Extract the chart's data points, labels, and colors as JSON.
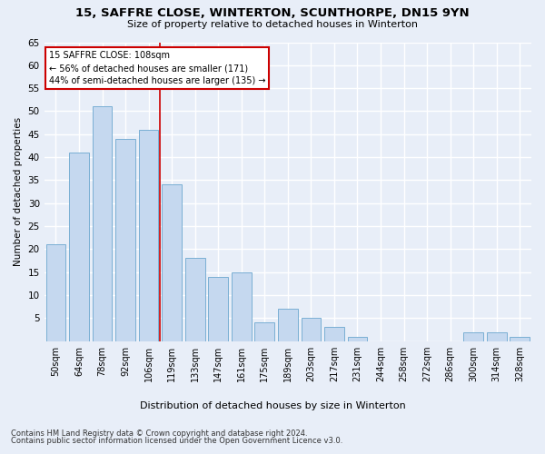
{
  "title": "15, SAFFRE CLOSE, WINTERTON, SCUNTHORPE, DN15 9YN",
  "subtitle": "Size of property relative to detached houses in Winterton",
  "xlabel": "Distribution of detached houses by size in Winterton",
  "ylabel": "Number of detached properties",
  "bar_color": "#c5d8ef",
  "bar_edge_color": "#7aafd4",
  "background_color": "#e8eef8",
  "grid_color": "#ffffff",
  "categories": [
    "50sqm",
    "64sqm",
    "78sqm",
    "92sqm",
    "106sqm",
    "119sqm",
    "133sqm",
    "147sqm",
    "161sqm",
    "175sqm",
    "189sqm",
    "203sqm",
    "217sqm",
    "231sqm",
    "244sqm",
    "258sqm",
    "272sqm",
    "286sqm",
    "300sqm",
    "314sqm",
    "328sqm"
  ],
  "values": [
    21,
    41,
    51,
    44,
    46,
    34,
    18,
    14,
    15,
    4,
    7,
    5,
    3,
    1,
    0,
    0,
    0,
    0,
    2,
    2,
    1
  ],
  "ylim": [
    0,
    65
  ],
  "yticks": [
    0,
    5,
    10,
    15,
    20,
    25,
    30,
    35,
    40,
    45,
    50,
    55,
    60,
    65
  ],
  "vline_x": 4.5,
  "vline_color": "#cc0000",
  "annotation_title": "15 SAFFRE CLOSE: 108sqm",
  "annotation_line1": "← 56% of detached houses are smaller (171)",
  "annotation_line2": "44% of semi-detached houses are larger (135) →",
  "annotation_box_color": "#ffffff",
  "annotation_box_edge": "#cc0000",
  "footnote1": "Contains HM Land Registry data © Crown copyright and database right 2024.",
  "footnote2": "Contains public sector information licensed under the Open Government Licence v3.0."
}
